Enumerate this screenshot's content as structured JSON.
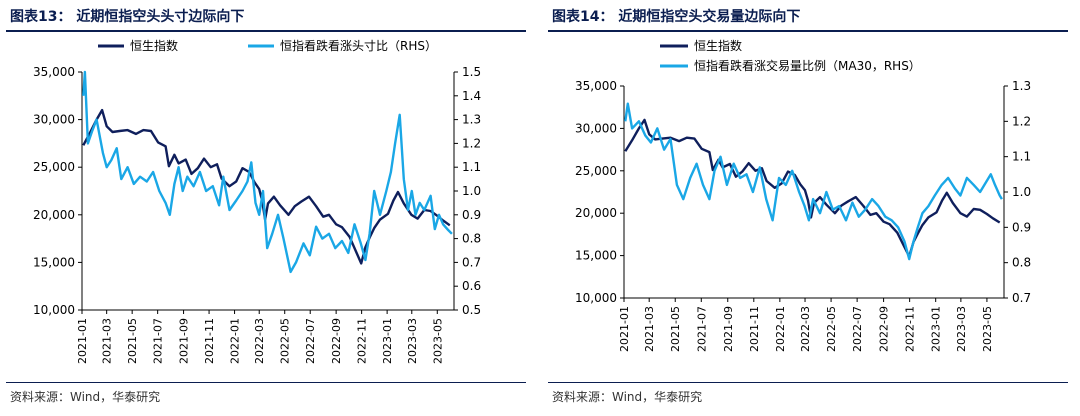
{
  "colors": {
    "navy": "#0f1f5c",
    "cyan": "#1aa7e6",
    "title": "#0b1e50"
  },
  "chart_data": [
    {
      "type": "line",
      "title": "图表13：  近期恒指空头头寸边际向下",
      "source": "资料来源：Wind，华泰研究",
      "x_ticks": [
        "2021-01",
        "2021-03",
        "2021-05",
        "2021-07",
        "2021-09",
        "2021-11",
        "2022-01",
        "2022-03",
        "2022-05",
        "2022-07",
        "2022-09",
        "2022-11",
        "2023-01",
        "2023-03",
        "2023-05"
      ],
      "x_range": [
        "2021-01-01",
        "2023-06-10"
      ],
      "left_axis": {
        "ylim": [
          10000,
          35000
        ],
        "ticks": [
          "10,000",
          "15,000",
          "20,000",
          "25,000",
          "30,000",
          "35,000"
        ]
      },
      "right_axis": {
        "ylim": [
          0.5,
          1.5
        ],
        "ticks": [
          "0.5",
          "0.6",
          "0.7",
          "0.8",
          "0.9",
          "1.0",
          "1.1",
          "1.2",
          "1.3",
          "1.4",
          "1.5"
        ]
      },
      "legend_position": "top",
      "series": [
        {
          "name": "恒生指数",
          "axis": "left",
          "color": "#0f1f5c",
          "x": [
            "2021-01-04",
            "2021-01-20",
            "2021-02-05",
            "2021-02-18",
            "2021-03-01",
            "2021-03-15",
            "2021-04-01",
            "2021-04-20",
            "2021-05-10",
            "2021-05-28",
            "2021-06-15",
            "2021-07-02",
            "2021-07-20",
            "2021-07-28",
            "2021-08-10",
            "2021-08-20",
            "2021-09-06",
            "2021-09-20",
            "2021-10-05",
            "2021-10-20",
            "2021-11-05",
            "2021-11-20",
            "2021-12-01",
            "2021-12-20",
            "2022-01-05",
            "2022-01-20",
            "2022-02-05",
            "2022-02-18",
            "2022-03-01",
            "2022-03-08",
            "2022-03-15",
            "2022-03-22",
            "2022-04-05",
            "2022-04-20",
            "2022-05-10",
            "2022-05-25",
            "2022-06-10",
            "2022-06-28",
            "2022-07-15",
            "2022-08-01",
            "2022-08-15",
            "2022-09-01",
            "2022-09-15",
            "2022-10-03",
            "2022-10-20",
            "2022-10-31",
            "2022-11-10",
            "2022-11-20",
            "2022-12-01",
            "2022-12-15",
            "2023-01-03",
            "2023-01-16",
            "2023-01-27",
            "2023-02-10",
            "2023-02-28",
            "2023-03-15",
            "2023-03-31",
            "2023-04-15",
            "2023-05-01",
            "2023-05-15",
            "2023-05-31"
          ],
          "values": [
            27300,
            28600,
            30000,
            31000,
            29300,
            28700,
            28800,
            28900,
            28500,
            28900,
            28800,
            27600,
            27200,
            25100,
            26300,
            25400,
            25800,
            24300,
            24900,
            25900,
            25000,
            25300,
            23800,
            23000,
            23500,
            24900,
            24500,
            23400,
            22700,
            21500,
            19500,
            21200,
            21900,
            21000,
            20000,
            20900,
            21400,
            21900,
            20900,
            19800,
            20000,
            19000,
            18700,
            17700,
            16000,
            14900,
            16600,
            17600,
            18600,
            19500,
            20100,
            21500,
            22400,
            21200,
            20000,
            19600,
            20500,
            20400,
            19900,
            19400,
            18900
          ]
        },
        {
          "name": "恒指看跌看涨头寸比（RHS）",
          "axis": "right",
          "color": "#1aa7e6",
          "x": [
            "2021-01-04",
            "2021-01-08",
            "2021-01-15",
            "2021-01-25",
            "2021-02-05",
            "2021-02-20",
            "2021-03-01",
            "2021-03-12",
            "2021-03-25",
            "2021-04-05",
            "2021-04-20",
            "2021-05-05",
            "2021-05-20",
            "2021-06-05",
            "2021-06-20",
            "2021-07-05",
            "2021-07-20",
            "2021-07-30",
            "2021-08-10",
            "2021-08-20",
            "2021-08-30",
            "2021-09-10",
            "2021-09-25",
            "2021-10-10",
            "2021-10-25",
            "2021-11-10",
            "2021-11-25",
            "2021-12-05",
            "2021-12-20",
            "2022-01-05",
            "2022-01-20",
            "2022-02-01",
            "2022-02-10",
            "2022-02-20",
            "2022-03-01",
            "2022-03-10",
            "2022-03-20",
            "2022-04-01",
            "2022-04-15",
            "2022-04-28",
            "2022-05-15",
            "2022-05-28",
            "2022-06-15",
            "2022-06-30",
            "2022-07-15",
            "2022-07-30",
            "2022-08-15",
            "2022-08-30",
            "2022-09-15",
            "2022-09-30",
            "2022-10-15",
            "2022-10-30",
            "2022-11-10",
            "2022-11-20",
            "2022-12-01",
            "2022-12-15",
            "2022-12-30",
            "2023-01-10",
            "2023-01-20",
            "2023-01-31",
            "2023-02-10",
            "2023-02-20",
            "2023-03-01",
            "2023-03-10",
            "2023-03-20",
            "2023-03-31",
            "2023-04-15",
            "2023-04-25",
            "2023-05-05",
            "2023-05-15",
            "2023-05-25",
            "2023-06-05"
          ],
          "values": [
            1.4,
            1.5,
            1.2,
            1.25,
            1.3,
            1.16,
            1.1,
            1.13,
            1.18,
            1.05,
            1.1,
            1.03,
            1.06,
            1.04,
            1.08,
            1.0,
            0.95,
            0.9,
            1.03,
            1.1,
            1.0,
            1.06,
            1.02,
            1.08,
            1.0,
            1.02,
            0.94,
            1.06,
            0.92,
            0.96,
            1.0,
            1.04,
            1.12,
            0.95,
            0.9,
            1.0,
            0.76,
            0.82,
            0.9,
            0.8,
            0.66,
            0.7,
            0.78,
            0.73,
            0.85,
            0.8,
            0.82,
            0.76,
            0.79,
            0.74,
            0.86,
            0.78,
            0.71,
            0.82,
            1.0,
            0.9,
            1.0,
            1.08,
            1.2,
            1.32,
            1.05,
            0.92,
            1.0,
            0.9,
            0.95,
            0.92,
            0.98,
            0.84,
            0.9,
            0.86,
            0.84,
            0.82
          ]
        }
      ]
    },
    {
      "type": "line",
      "title": "图表14：  近期恒指空头交易量边际向下",
      "source": "资料来源：Wind，华泰研究",
      "x_ticks": [
        "2021-01",
        "2021-03",
        "2021-05",
        "2021-07",
        "2021-09",
        "2021-11",
        "2022-01",
        "2022-03",
        "2022-05",
        "2022-07",
        "2022-09",
        "2022-11",
        "2023-01",
        "2023-03",
        "2023-05"
      ],
      "x_range": [
        "2021-01-01",
        "2023-06-10"
      ],
      "left_axis": {
        "ylim": [
          10000,
          35000
        ],
        "ticks": [
          "10,000",
          "15,000",
          "20,000",
          "25,000",
          "30,000",
          "35,000"
        ]
      },
      "right_axis": {
        "ylim": [
          0.7,
          1.3
        ],
        "ticks": [
          "0.7",
          "0.8",
          "0.9",
          "1.0",
          "1.1",
          "1.2",
          "1.3"
        ]
      },
      "legend_position": "top",
      "series": [
        {
          "name": "恒生指数",
          "axis": "left",
          "color": "#0f1f5c",
          "x": [
            "2021-01-04",
            "2021-01-20",
            "2021-02-05",
            "2021-02-18",
            "2021-03-01",
            "2021-03-15",
            "2021-04-01",
            "2021-04-20",
            "2021-05-10",
            "2021-05-28",
            "2021-06-15",
            "2021-07-02",
            "2021-07-20",
            "2021-07-28",
            "2021-08-10",
            "2021-08-20",
            "2021-09-06",
            "2021-09-20",
            "2021-10-05",
            "2021-10-20",
            "2021-11-05",
            "2021-11-20",
            "2021-12-01",
            "2021-12-20",
            "2022-01-05",
            "2022-01-20",
            "2022-02-05",
            "2022-02-18",
            "2022-03-01",
            "2022-03-08",
            "2022-03-15",
            "2022-03-22",
            "2022-04-05",
            "2022-04-20",
            "2022-05-10",
            "2022-05-25",
            "2022-06-10",
            "2022-06-28",
            "2022-07-15",
            "2022-08-01",
            "2022-08-15",
            "2022-09-01",
            "2022-09-15",
            "2022-10-03",
            "2022-10-20",
            "2022-10-31",
            "2022-11-10",
            "2022-11-20",
            "2022-12-01",
            "2022-12-15",
            "2023-01-03",
            "2023-01-16",
            "2023-01-27",
            "2023-02-10",
            "2023-02-28",
            "2023-03-15",
            "2023-03-31",
            "2023-04-15",
            "2023-05-01",
            "2023-05-15",
            "2023-05-31"
          ],
          "values": [
            27300,
            28600,
            30000,
            31000,
            29300,
            28700,
            28800,
            28900,
            28500,
            28900,
            28800,
            27600,
            27200,
            25100,
            26300,
            25400,
            25800,
            24300,
            24900,
            25900,
            25000,
            25300,
            23800,
            23000,
            23500,
            24900,
            24500,
            23400,
            22700,
            21500,
            19500,
            21200,
            21900,
            21000,
            20000,
            20900,
            21400,
            21900,
            20900,
            19800,
            20000,
            19000,
            18700,
            17700,
            16000,
            14900,
            16600,
            17600,
            18600,
            19500,
            20100,
            21500,
            22400,
            21200,
            20000,
            19600,
            20500,
            20400,
            19900,
            19400,
            18900
          ]
        },
        {
          "name": "恒指看跌看涨交易量比例（MA30，RHS）",
          "axis": "right",
          "color": "#1aa7e6",
          "x": [
            "2021-01-04",
            "2021-01-10",
            "2021-01-20",
            "2021-02-05",
            "2021-02-20",
            "2021-03-05",
            "2021-03-20",
            "2021-04-05",
            "2021-04-20",
            "2021-05-05",
            "2021-05-20",
            "2021-06-05",
            "2021-06-20",
            "2021-07-05",
            "2021-07-20",
            "2021-08-01",
            "2021-08-15",
            "2021-08-30",
            "2021-09-15",
            "2021-09-30",
            "2021-10-15",
            "2021-10-30",
            "2021-11-15",
            "2021-11-30",
            "2021-12-15",
            "2021-12-30",
            "2022-01-15",
            "2022-01-30",
            "2022-02-15",
            "2022-02-28",
            "2022-03-10",
            "2022-03-20",
            "2022-04-05",
            "2022-04-20",
            "2022-05-05",
            "2022-05-20",
            "2022-06-05",
            "2022-06-20",
            "2022-07-05",
            "2022-07-20",
            "2022-08-05",
            "2022-08-20",
            "2022-09-05",
            "2022-09-20",
            "2022-10-05",
            "2022-10-20",
            "2022-10-31",
            "2022-11-10",
            "2022-11-20",
            "2022-12-01",
            "2022-12-15",
            "2022-12-30",
            "2023-01-15",
            "2023-01-30",
            "2023-02-15",
            "2023-02-28",
            "2023-03-15",
            "2023-03-31",
            "2023-04-15",
            "2023-04-30",
            "2023-05-10",
            "2023-05-20",
            "2023-05-31",
            "2023-06-05"
          ],
          "values": [
            1.2,
            1.25,
            1.18,
            1.2,
            1.16,
            1.14,
            1.18,
            1.12,
            1.15,
            1.02,
            0.98,
            1.04,
            1.08,
            1.02,
            0.98,
            1.06,
            1.1,
            1.02,
            1.08,
            1.04,
            1.05,
            1.0,
            1.07,
            0.98,
            0.92,
            1.04,
            1.02,
            1.06,
            1.0,
            0.96,
            0.92,
            0.98,
            0.94,
            1.0,
            0.95,
            0.96,
            0.92,
            0.97,
            0.93,
            0.95,
            0.98,
            0.96,
            0.93,
            0.92,
            0.9,
            0.86,
            0.81,
            0.86,
            0.9,
            0.94,
            0.96,
            0.99,
            1.02,
            1.04,
            1.01,
            0.99,
            1.04,
            1.02,
            1.0,
            1.03,
            1.05,
            1.02,
            0.99,
            0.98
          ]
        }
      ]
    }
  ]
}
